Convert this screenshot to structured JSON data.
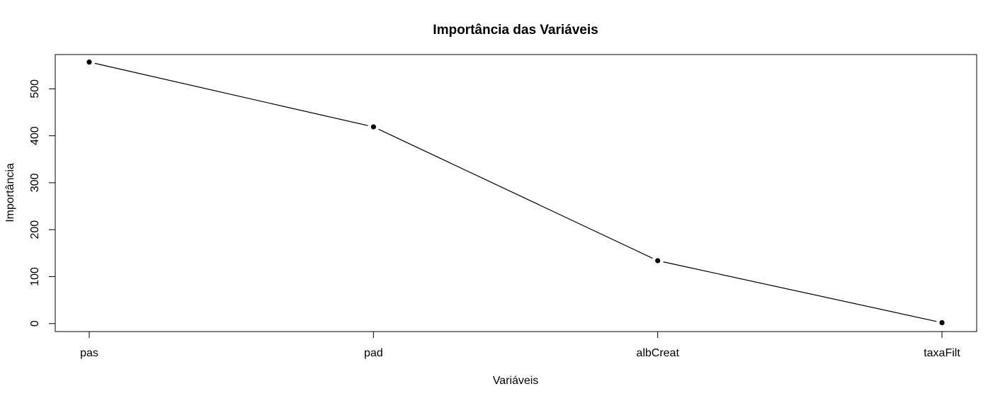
{
  "chart_data": {
    "type": "line",
    "title": "Importância das Variáveis",
    "xlabel": "Variáveis",
    "ylabel": "Importância",
    "categories": [
      "pas",
      "pad",
      "albCreat",
      "taxaFilt"
    ],
    "values": [
      557,
      419,
      134,
      2
    ],
    "ylim": [
      -17,
      573
    ],
    "yticks": [
      0,
      100,
      200,
      300,
      400,
      500
    ],
    "grid": false,
    "legend": "none",
    "line_color": "#000000",
    "point_color": "#000000"
  }
}
